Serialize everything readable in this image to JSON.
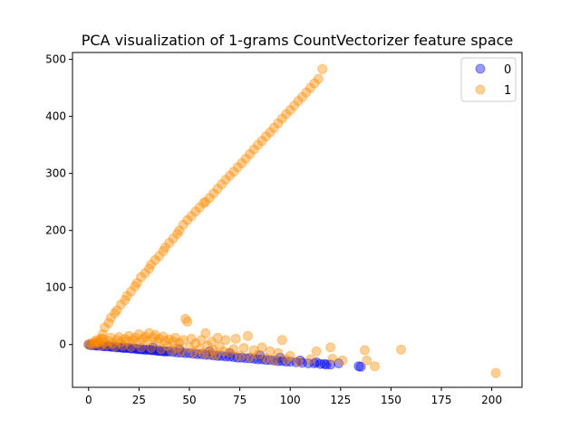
{
  "chart_data": {
    "type": "scatter",
    "title": "PCA visualization of 1-grams CountVectorizer feature space",
    "xlabel": "",
    "ylabel": "",
    "xlim": [
      -8,
      215
    ],
    "ylim": [
      -75,
      512
    ],
    "xticks": [
      0,
      25,
      50,
      75,
      100,
      125,
      150,
      175,
      200
    ],
    "yticks": [
      0,
      100,
      200,
      300,
      400,
      500
    ],
    "grid": false,
    "legend": "top-right",
    "series": [
      {
        "name": "0",
        "color": "#0000ee",
        "alpha": 0.4,
        "points": [
          [
            0,
            0
          ],
          [
            1,
            -1
          ],
          [
            2,
            -1
          ],
          [
            3,
            -1
          ],
          [
            4,
            -2
          ],
          [
            5,
            -2
          ],
          [
            6,
            -2
          ],
          [
            7,
            -3
          ],
          [
            8,
            -3
          ],
          [
            9,
            -3
          ],
          [
            10,
            -3
          ],
          [
            11,
            -4
          ],
          [
            12,
            -4
          ],
          [
            13,
            -4
          ],
          [
            14,
            -5
          ],
          [
            15,
            -5
          ],
          [
            16,
            -5
          ],
          [
            17,
            -6
          ],
          [
            18,
            -6
          ],
          [
            19,
            -6
          ],
          [
            20,
            -6
          ],
          [
            21,
            -7
          ],
          [
            22,
            -7
          ],
          [
            23,
            -7
          ],
          [
            24,
            -8
          ],
          [
            25,
            -8
          ],
          [
            26,
            -8
          ],
          [
            27,
            -9
          ],
          [
            28,
            -9
          ],
          [
            29,
            -9
          ],
          [
            30,
            -9
          ],
          [
            31,
            -10
          ],
          [
            32,
            -10
          ],
          [
            33,
            -10
          ],
          [
            34,
            -11
          ],
          [
            35,
            -11
          ],
          [
            36,
            -11
          ],
          [
            37,
            -12
          ],
          [
            38,
            -12
          ],
          [
            39,
            -12
          ],
          [
            40,
            -12
          ],
          [
            42,
            -13
          ],
          [
            44,
            -14
          ],
          [
            46,
            -14
          ],
          [
            48,
            -15
          ],
          [
            50,
            -15
          ],
          [
            52,
            -16
          ],
          [
            54,
            -17
          ],
          [
            56,
            -17
          ],
          [
            58,
            -18
          ],
          [
            60,
            -18
          ],
          [
            62,
            -19
          ],
          [
            64,
            -20
          ],
          [
            66,
            -20
          ],
          [
            68,
            -21
          ],
          [
            70,
            -21
          ],
          [
            72,
            -22
          ],
          [
            74,
            -23
          ],
          [
            76,
            -23
          ],
          [
            78,
            -24
          ],
          [
            80,
            -24
          ],
          [
            82,
            -25
          ],
          [
            84,
            -26
          ],
          [
            86,
            -26
          ],
          [
            88,
            -27
          ],
          [
            90,
            -27
          ],
          [
            92,
            -28
          ],
          [
            94,
            -29
          ],
          [
            96,
            -29
          ],
          [
            98,
            -30
          ],
          [
            100,
            -30
          ],
          [
            103,
            -31
          ],
          [
            106,
            -32
          ],
          [
            109,
            -33
          ],
          [
            112,
            -33
          ],
          [
            115,
            -34
          ],
          [
            117,
            -34
          ],
          [
            118,
            -35
          ],
          [
            120,
            -35
          ],
          [
            124,
            -33
          ],
          [
            134,
            -38
          ],
          [
            135,
            -39
          ],
          [
            32,
            -5
          ],
          [
            45,
            -8
          ],
          [
            60,
            -12
          ],
          [
            70,
            -15
          ],
          [
            85,
            -19
          ],
          [
            95,
            -23
          ],
          [
            105,
            -28
          ],
          [
            113,
            -31
          ]
        ]
      },
      {
        "name": "1",
        "color": "#ff8c00",
        "alpha": 0.4,
        "points": [
          [
            0,
            0
          ],
          [
            2,
            0
          ],
          [
            3,
            2
          ],
          [
            5,
            5
          ],
          [
            6,
            10
          ],
          [
            7,
            18
          ],
          [
            8,
            30
          ],
          [
            10,
            38
          ],
          [
            11,
            47
          ],
          [
            13,
            55
          ],
          [
            14,
            60
          ],
          [
            16,
            70
          ],
          [
            18,
            78
          ],
          [
            19,
            85
          ],
          [
            21,
            93
          ],
          [
            23,
            102
          ],
          [
            24,
            108
          ],
          [
            26,
            118
          ],
          [
            28,
            125
          ],
          [
            30,
            133
          ],
          [
            31,
            140
          ],
          [
            33,
            148
          ],
          [
            35,
            155
          ],
          [
            37,
            164
          ],
          [
            38,
            170
          ],
          [
            40,
            178
          ],
          [
            42,
            186
          ],
          [
            44,
            194
          ],
          [
            45,
            200
          ],
          [
            47,
            210
          ],
          [
            49,
            218
          ],
          [
            51,
            225
          ],
          [
            53,
            233
          ],
          [
            55,
            240
          ],
          [
            57,
            248
          ],
          [
            58,
            250
          ],
          [
            60,
            257
          ],
          [
            62,
            265
          ],
          [
            64,
            273
          ],
          [
            66,
            281
          ],
          [
            68,
            289
          ],
          [
            70,
            296
          ],
          [
            72,
            303
          ],
          [
            74,
            311
          ],
          [
            76,
            318
          ],
          [
            78,
            326
          ],
          [
            80,
            334
          ],
          [
            82,
            342
          ],
          [
            84,
            350
          ],
          [
            86,
            357
          ],
          [
            88,
            365
          ],
          [
            90,
            372
          ],
          [
            92,
            380
          ],
          [
            94,
            388
          ],
          [
            96,
            396
          ],
          [
            98,
            404
          ],
          [
            100,
            411
          ],
          [
            102,
            419
          ],
          [
            104,
            427
          ],
          [
            106,
            434
          ],
          [
            108,
            442
          ],
          [
            110,
            450
          ],
          [
            112,
            458
          ],
          [
            114,
            466
          ],
          [
            116,
            483
          ],
          [
            1,
            2
          ],
          [
            3,
            5
          ],
          [
            4,
            8
          ],
          [
            5,
            3
          ],
          [
            6,
            -2
          ],
          [
            7,
            10
          ],
          [
            8,
            4
          ],
          [
            9,
            -1
          ],
          [
            10,
            6
          ],
          [
            11,
            12
          ],
          [
            12,
            2
          ],
          [
            13,
            -3
          ],
          [
            14,
            8
          ],
          [
            15,
            13
          ],
          [
            16,
            4
          ],
          [
            17,
            -2
          ],
          [
            18,
            10
          ],
          [
            19,
            6
          ],
          [
            20,
            15
          ],
          [
            21,
            -4
          ],
          [
            22,
            8
          ],
          [
            23,
            12
          ],
          [
            24,
            3
          ],
          [
            25,
            18
          ],
          [
            26,
            -5
          ],
          [
            27,
            10
          ],
          [
            28,
            14
          ],
          [
            29,
            6
          ],
          [
            30,
            20
          ],
          [
            31,
            -6
          ],
          [
            32,
            12
          ],
          [
            33,
            17
          ],
          [
            34,
            4
          ],
          [
            35,
            10
          ],
          [
            36,
            -8
          ],
          [
            37,
            14
          ],
          [
            38,
            6
          ],
          [
            39,
            -2
          ],
          [
            40,
            9
          ],
          [
            41,
            -10
          ],
          [
            42,
            5
          ],
          [
            43,
            12
          ],
          [
            44,
            -6
          ],
          [
            45,
            3
          ],
          [
            46,
            -12
          ],
          [
            47,
            8
          ],
          [
            48,
            45
          ],
          [
            49,
            40
          ],
          [
            50,
            -5
          ],
          [
            51,
            10
          ],
          [
            52,
            -14
          ],
          [
            53,
            2
          ],
          [
            55,
            -8
          ],
          [
            56,
            8
          ],
          [
            57,
            -15
          ],
          [
            58,
            20
          ],
          [
            59,
            -2
          ],
          [
            60,
            -16
          ],
          [
            61,
            5
          ],
          [
            62,
            -10
          ],
          [
            63,
            -18
          ],
          [
            64,
            12
          ],
          [
            65,
            -4
          ],
          [
            67,
            -12
          ],
          [
            68,
            8
          ],
          [
            70,
            -14
          ],
          [
            72,
            -8
          ],
          [
            73,
            10
          ],
          [
            75,
            -20
          ],
          [
            77,
            -6
          ],
          [
            79,
            15
          ],
          [
            80,
            -22
          ],
          [
            82,
            -10
          ],
          [
            84,
            -18
          ],
          [
            86,
            -5
          ],
          [
            88,
            -24
          ],
          [
            90,
            -12
          ],
          [
            92,
            -28
          ],
          [
            94,
            -15
          ],
          [
            96,
            8
          ],
          [
            98,
            -26
          ],
          [
            100,
            -20
          ],
          [
            104,
            -30
          ],
          [
            110,
            -26
          ],
          [
            113,
            -12
          ],
          [
            120,
            -5
          ],
          [
            121,
            -25
          ],
          [
            126,
            -28
          ],
          [
            137,
            -10
          ],
          [
            138,
            -28
          ],
          [
            142,
            -38
          ],
          [
            155,
            -9
          ],
          [
            202,
            -50
          ]
        ]
      }
    ]
  }
}
